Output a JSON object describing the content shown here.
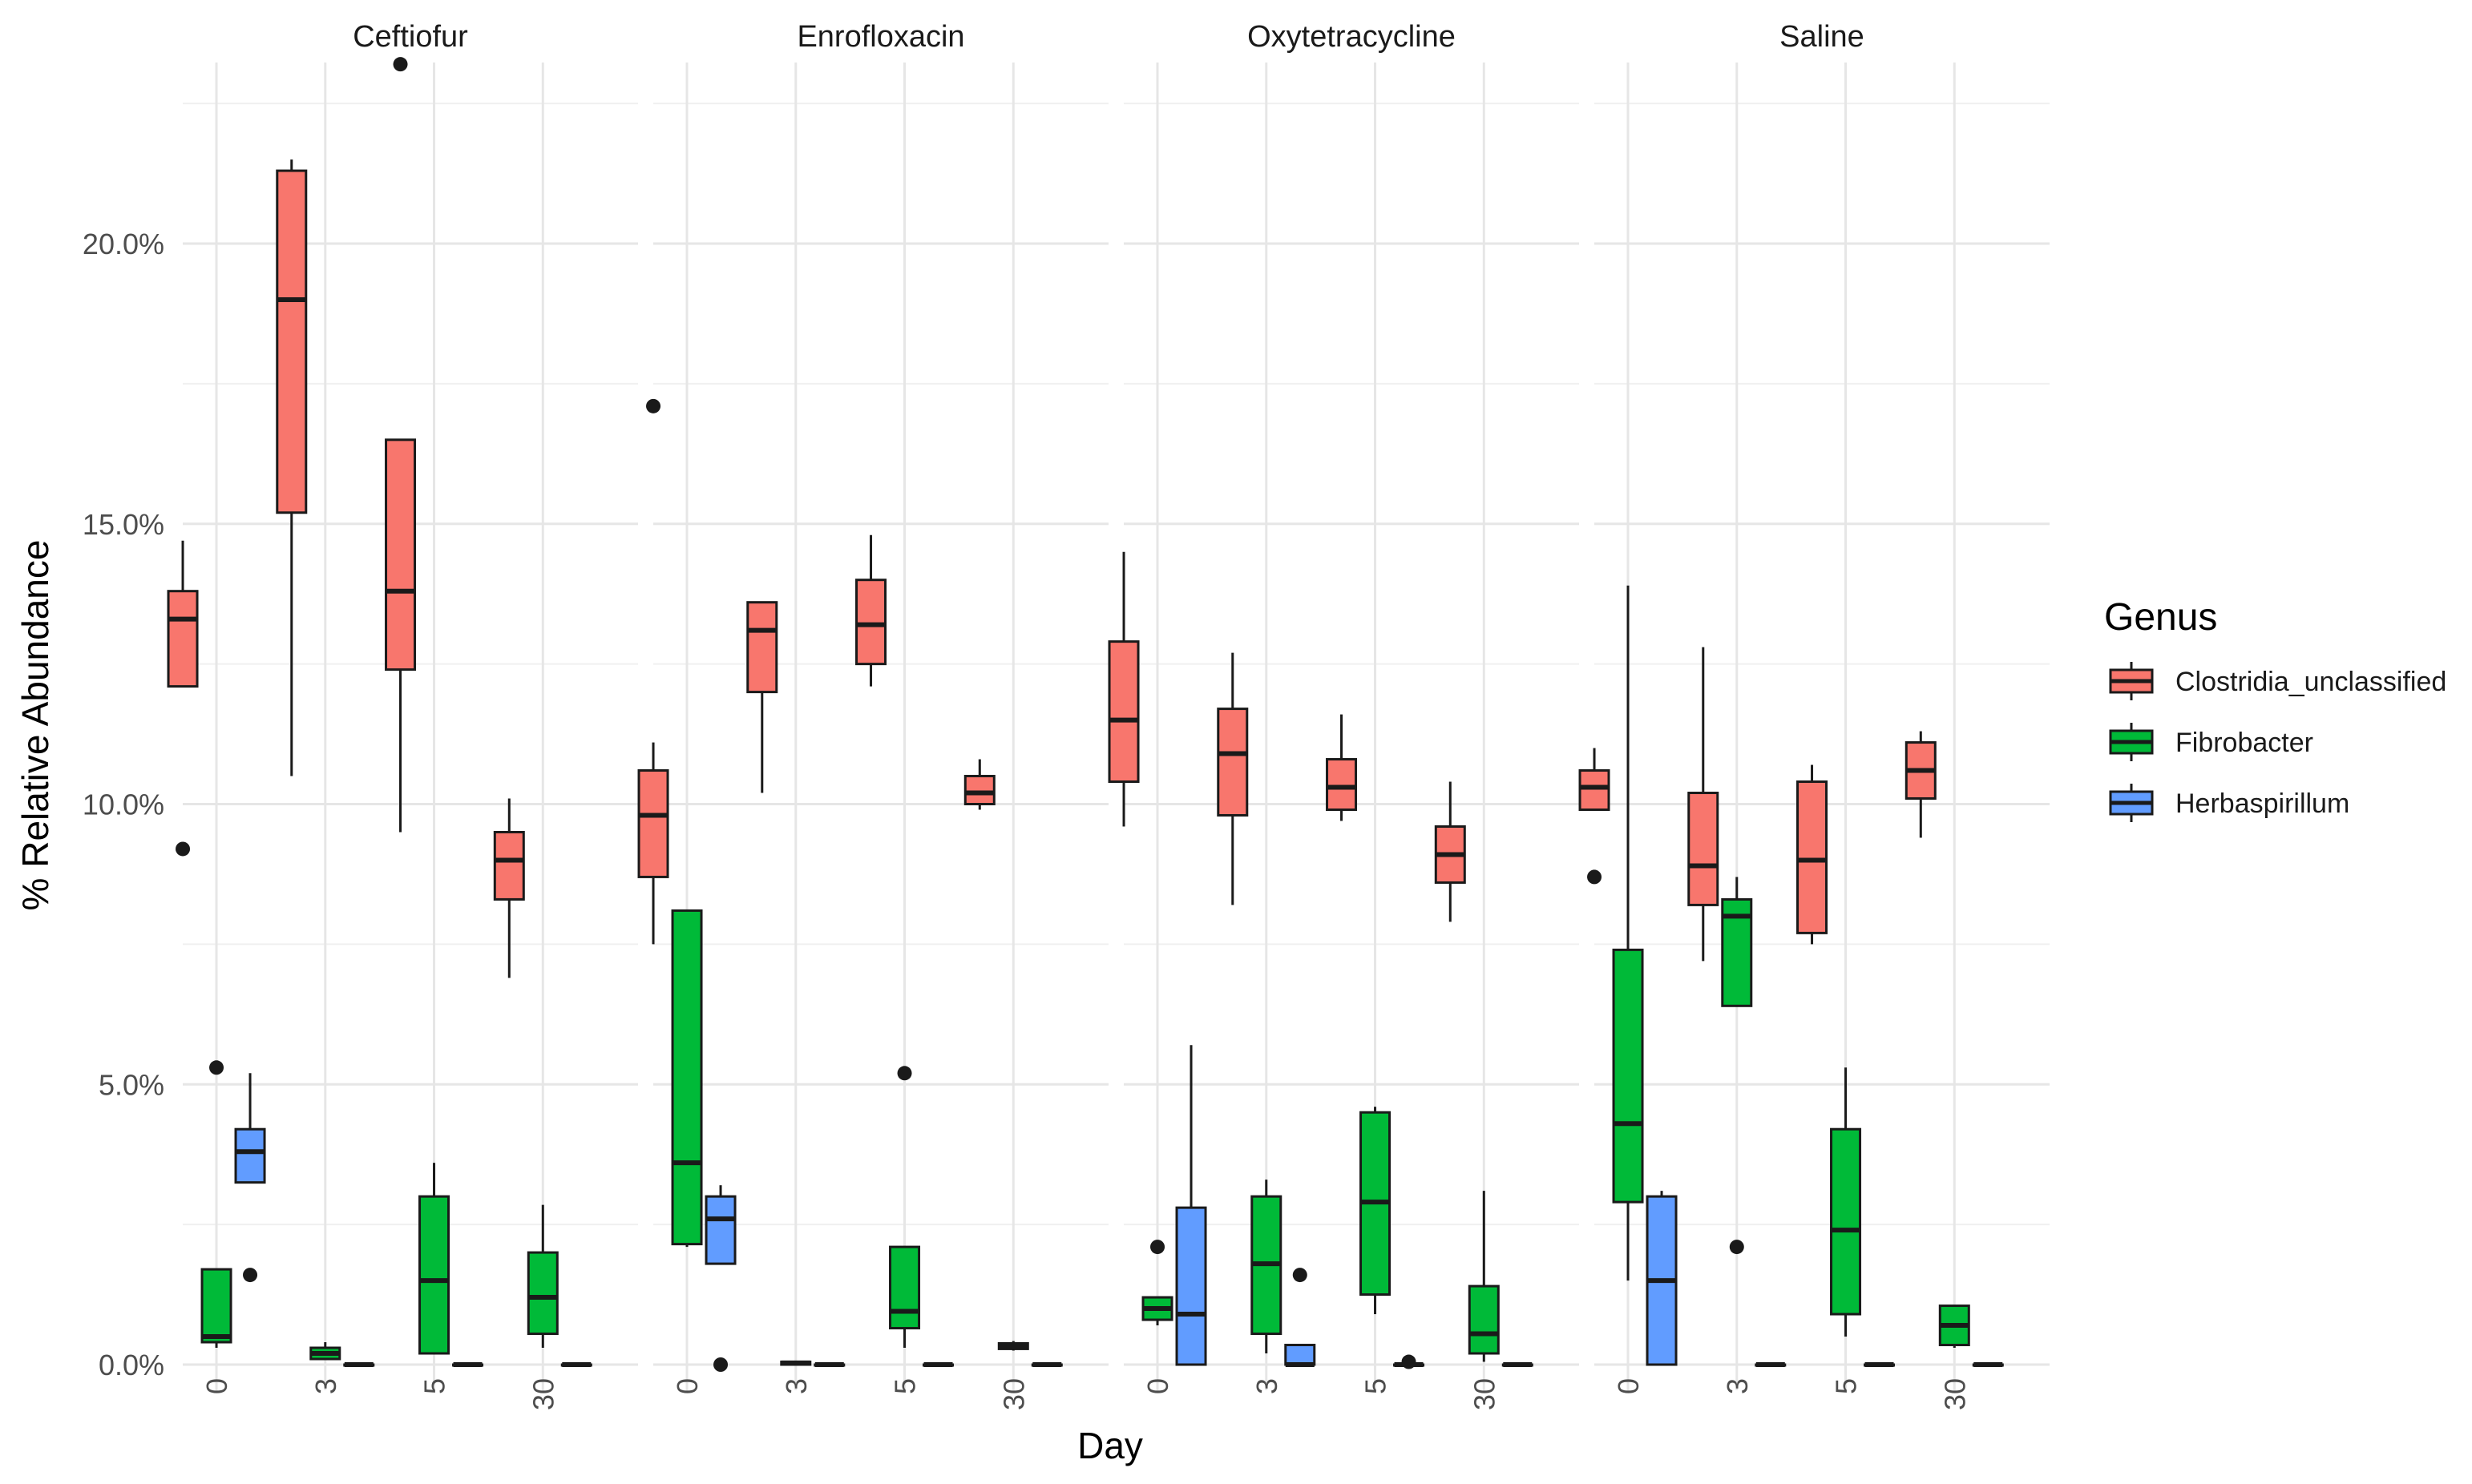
{
  "chart_data": {
    "type": "boxplot",
    "xlabel": "Day",
    "ylabel": "% Relative Abundance",
    "ylim": [
      0,
      23
    ],
    "y_ticks": [
      "0.0%",
      "5.0%",
      "10.0%",
      "15.0%",
      "20.0%"
    ],
    "y_tick_values": [
      0,
      5,
      10,
      15,
      20
    ],
    "x_ticks": [
      "0",
      "3",
      "5",
      "30"
    ],
    "legend": {
      "title": "Genus",
      "position": "right",
      "entries": [
        {
          "name": "Clostridia_unclassified",
          "color": "#F8766D"
        },
        {
          "name": "Fibrobacter",
          "color": "#00BA38"
        },
        {
          "name": "Herbaspirillum",
          "color": "#619CFF"
        }
      ]
    },
    "panels": [
      {
        "title": "Ceftiofur",
        "groups": [
          {
            "day": "0",
            "boxes": [
              {
                "genus": 0,
                "min": 12.1,
                "q1": 12.1,
                "median": 13.3,
                "q3": 13.8,
                "max": 14.7,
                "outliers": [
                  9.2
                ]
              },
              {
                "genus": 1,
                "min": 0.3,
                "q1": 0.4,
                "median": 0.5,
                "q3": 1.7,
                "max": 1.7,
                "outliers": [
                  5.3
                ]
              },
              {
                "genus": 2,
                "min": 3.25,
                "q1": 3.25,
                "median": 3.8,
                "q3": 4.2,
                "max": 5.2,
                "outliers": [
                  1.6
                ]
              }
            ]
          },
          {
            "day": "3",
            "boxes": [
              {
                "genus": 0,
                "min": 10.5,
                "q1": 15.2,
                "median": 19.0,
                "q3": 21.3,
                "max": 21.5,
                "outliers": []
              },
              {
                "genus": 1,
                "min": 0.1,
                "q1": 0.1,
                "median": 0.2,
                "q3": 0.3,
                "max": 0.4,
                "outliers": []
              },
              {
                "genus": 2,
                "min": 0,
                "q1": 0,
                "median": 0,
                "q3": 0,
                "max": 0,
                "outliers": []
              }
            ]
          },
          {
            "day": "5",
            "boxes": [
              {
                "genus": 0,
                "min": 9.5,
                "q1": 12.4,
                "median": 13.8,
                "q3": 16.5,
                "max": 16.5,
                "outliers": [
                  23.2
                ]
              },
              {
                "genus": 1,
                "min": 0.2,
                "q1": 0.2,
                "median": 1.5,
                "q3": 3.0,
                "max": 3.6,
                "outliers": []
              },
              {
                "genus": 2,
                "min": 0,
                "q1": 0,
                "median": 0,
                "q3": 0,
                "max": 0,
                "outliers": []
              }
            ]
          },
          {
            "day": "30",
            "boxes": [
              {
                "genus": 0,
                "min": 6.9,
                "q1": 8.3,
                "median": 9.0,
                "q3": 9.5,
                "max": 10.1,
                "outliers": []
              },
              {
                "genus": 1,
                "min": 0.3,
                "q1": 0.55,
                "median": 1.2,
                "q3": 2.0,
                "max": 2.85,
                "outliers": []
              },
              {
                "genus": 2,
                "min": 0,
                "q1": 0,
                "median": 0,
                "q3": 0,
                "max": 0,
                "outliers": []
              }
            ]
          }
        ]
      },
      {
        "title": "Enrofloxacin",
        "groups": [
          {
            "day": "0",
            "boxes": [
              {
                "genus": 0,
                "min": 7.5,
                "q1": 8.7,
                "median": 9.8,
                "q3": 10.6,
                "max": 11.1,
                "outliers": [
                  17.1
                ]
              },
              {
                "genus": 1,
                "min": 2.1,
                "q1": 2.15,
                "median": 3.6,
                "q3": 8.1,
                "max": 8.1,
                "outliers": []
              },
              {
                "genus": 2,
                "min": 1.8,
                "q1": 1.8,
                "median": 2.6,
                "q3": 3.0,
                "max": 3.2,
                "outliers": [
                  0
                ]
              }
            ]
          },
          {
            "day": "3",
            "boxes": [
              {
                "genus": 0,
                "min": 10.2,
                "q1": 12.0,
                "median": 13.1,
                "q3": 13.6,
                "max": 13.6,
                "outliers": []
              },
              {
                "genus": 1,
                "min": 0,
                "q1": 0,
                "median": 0.03,
                "q3": 0.05,
                "max": 0.05,
                "outliers": []
              },
              {
                "genus": 2,
                "min": 0,
                "q1": 0,
                "median": 0,
                "q3": 0,
                "max": 0,
                "outliers": []
              }
            ]
          },
          {
            "day": "5",
            "boxes": [
              {
                "genus": 0,
                "min": 12.1,
                "q1": 12.5,
                "median": 13.2,
                "q3": 14.0,
                "max": 14.8,
                "outliers": []
              },
              {
                "genus": 1,
                "min": 0.3,
                "q1": 0.65,
                "median": 0.95,
                "q3": 2.1,
                "max": 2.1,
                "outliers": [
                  5.2
                ]
              },
              {
                "genus": 2,
                "min": 0,
                "q1": 0,
                "median": 0,
                "q3": 0,
                "max": 0,
                "outliers": []
              }
            ]
          },
          {
            "day": "30",
            "boxes": [
              {
                "genus": 0,
                "min": 9.9,
                "q1": 10.0,
                "median": 10.2,
                "q3": 10.5,
                "max": 10.8,
                "outliers": []
              },
              {
                "genus": 1,
                "min": 0.25,
                "q1": 0.28,
                "median": 0.32,
                "q3": 0.38,
                "max": 0.42,
                "outliers": []
              },
              {
                "genus": 2,
                "min": 0,
                "q1": 0,
                "median": 0,
                "q3": 0,
                "max": 0,
                "outliers": []
              }
            ]
          }
        ]
      },
      {
        "title": "Oxytetracycline",
        "groups": [
          {
            "day": "0",
            "boxes": [
              {
                "genus": 0,
                "min": 9.6,
                "q1": 10.4,
                "median": 11.5,
                "q3": 12.9,
                "max": 14.5,
                "outliers": []
              },
              {
                "genus": 1,
                "min": 0.7,
                "q1": 0.8,
                "median": 1.0,
                "q3": 1.2,
                "max": 1.2,
                "outliers": [
                  2.1
                ]
              },
              {
                "genus": 2,
                "min": 0,
                "q1": 0,
                "median": 0.9,
                "q3": 2.8,
                "max": 5.7,
                "outliers": []
              }
            ]
          },
          {
            "day": "3",
            "boxes": [
              {
                "genus": 0,
                "min": 8.2,
                "q1": 9.8,
                "median": 10.9,
                "q3": 11.7,
                "max": 12.7,
                "outliers": []
              },
              {
                "genus": 1,
                "min": 0.2,
                "q1": 0.55,
                "median": 1.8,
                "q3": 3.0,
                "max": 3.3,
                "outliers": []
              },
              {
                "genus": 2,
                "min": 0,
                "q1": 0,
                "median": 0,
                "q3": 0.35,
                "max": 0.35,
                "outliers": [
                  1.6
                ]
              }
            ]
          },
          {
            "day": "5",
            "boxes": [
              {
                "genus": 0,
                "min": 9.7,
                "q1": 9.9,
                "median": 10.3,
                "q3": 10.8,
                "max": 11.6,
                "outliers": []
              },
              {
                "genus": 1,
                "min": 0.9,
                "q1": 1.25,
                "median": 2.9,
                "q3": 4.5,
                "max": 4.6,
                "outliers": []
              },
              {
                "genus": 2,
                "min": 0,
                "q1": 0,
                "median": 0,
                "q3": 0,
                "max": 0,
                "outliers": [
                  0.05
                ]
              }
            ]
          },
          {
            "day": "30",
            "boxes": [
              {
                "genus": 0,
                "min": 7.9,
                "q1": 8.6,
                "median": 9.1,
                "q3": 9.6,
                "max": 10.4,
                "outliers": []
              },
              {
                "genus": 1,
                "min": 0.05,
                "q1": 0.2,
                "median": 0.55,
                "q3": 1.4,
                "max": 3.1,
                "outliers": []
              },
              {
                "genus": 2,
                "min": 0,
                "q1": 0,
                "median": 0,
                "q3": 0,
                "max": 0,
                "outliers": []
              }
            ]
          }
        ]
      },
      {
        "title": "Saline",
        "groups": [
          {
            "day": "0",
            "boxes": [
              {
                "genus": 0,
                "min": 9.9,
                "q1": 9.9,
                "median": 10.3,
                "q3": 10.6,
                "max": 11.0,
                "outliers": [
                  8.7
                ]
              },
              {
                "genus": 1,
                "min": 1.5,
                "q1": 2.9,
                "median": 4.3,
                "q3": 7.4,
                "max": 13.9,
                "outliers": []
              },
              {
                "genus": 2,
                "min": 0,
                "q1": 0,
                "median": 1.5,
                "q3": 3.0,
                "max": 3.1,
                "outliers": []
              }
            ]
          },
          {
            "day": "3",
            "boxes": [
              {
                "genus": 0,
                "min": 7.2,
                "q1": 8.2,
                "median": 8.9,
                "q3": 10.2,
                "max": 12.8,
                "outliers": []
              },
              {
                "genus": 1,
                "min": 6.4,
                "q1": 6.4,
                "median": 8.0,
                "q3": 8.3,
                "max": 8.7,
                "outliers": [
                  2.1
                ]
              },
              {
                "genus": 2,
                "min": 0,
                "q1": 0,
                "median": 0,
                "q3": 0,
                "max": 0,
                "outliers": []
              }
            ]
          },
          {
            "day": "5",
            "boxes": [
              {
                "genus": 0,
                "min": 7.5,
                "q1": 7.7,
                "median": 9.0,
                "q3": 10.4,
                "max": 10.7,
                "outliers": []
              },
              {
                "genus": 1,
                "min": 0.5,
                "q1": 0.9,
                "median": 2.4,
                "q3": 4.2,
                "max": 5.3,
                "outliers": []
              },
              {
                "genus": 2,
                "min": 0,
                "q1": 0,
                "median": 0,
                "q3": 0,
                "max": 0,
                "outliers": []
              }
            ]
          },
          {
            "day": "30",
            "boxes": [
              {
                "genus": 0,
                "min": 9.4,
                "q1": 10.1,
                "median": 10.6,
                "q3": 11.1,
                "max": 11.3,
                "outliers": []
              },
              {
                "genus": 1,
                "min": 0.3,
                "q1": 0.35,
                "median": 0.7,
                "q3": 1.05,
                "max": 1.05,
                "outliers": []
              },
              {
                "genus": 2,
                "min": 0,
                "q1": 0,
                "median": 0,
                "q3": 0,
                "max": 0,
                "outliers": []
              }
            ]
          }
        ]
      }
    ]
  }
}
